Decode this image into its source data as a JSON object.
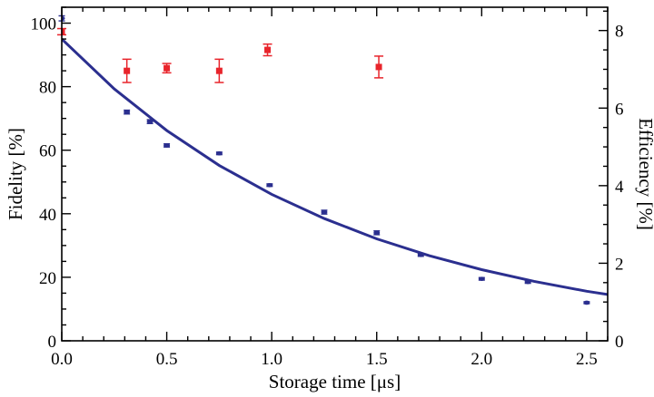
{
  "chart_data": {
    "type": "scatter",
    "title": "",
    "xlabel": "Storage time [μs]",
    "ylabel": "Fidelity [%]",
    "y2label": "Efficiency [%]",
    "xlim": [
      0,
      2.6
    ],
    "ylim": [
      0,
      105
    ],
    "y2lim": [
      0,
      8.6
    ],
    "xticks": [
      "0.0",
      "0.5",
      "1.0",
      "1.5",
      "2.0",
      "2.5"
    ],
    "yticks": [
      "0",
      "20",
      "40",
      "60",
      "80",
      "100"
    ],
    "y2ticks": [
      "0",
      "2",
      "4",
      "6",
      "8"
    ],
    "grid": false,
    "colors": {
      "efficiency": "#e8242b",
      "fidelity": "#2b2f8f",
      "fit": "#2b2f8f"
    },
    "series": [
      {
        "axis": "right",
        "marker": "square",
        "x": [
          0.0,
          0.31,
          0.5,
          0.75,
          0.98,
          1.51
        ],
        "y": [
          7.97,
          6.96,
          7.03,
          6.96,
          7.5,
          7.06
        ],
        "err": [
          0.08,
          0.3,
          0.12,
          0.3,
          0.15,
          0.28
        ]
      },
      {
        "axis": "left",
        "marker": "dot",
        "x": [
          0.0,
          0.31,
          0.42,
          0.5,
          0.75,
          0.99,
          1.25,
          1.5,
          1.71,
          2.0,
          2.22,
          2.5
        ],
        "y": [
          101.5,
          72,
          69,
          61.5,
          59,
          49,
          40.5,
          34,
          27,
          19.5,
          18.5,
          12
        ],
        "err": [
          0.8,
          0.6,
          0.6,
          0.5,
          0.4,
          0.4,
          0.6,
          0.6,
          0.4,
          0.4,
          0.4,
          0.3
        ]
      },
      {
        "axis": "left",
        "marker": "none",
        "style": "line",
        "x": [
          0.0,
          0.25,
          0.5,
          0.75,
          1.0,
          1.25,
          1.5,
          1.75,
          2.0,
          2.25,
          2.5,
          2.6
        ],
        "y": [
          95.0,
          79.3,
          66.2,
          55.2,
          46.1,
          38.5,
          32.1,
          26.8,
          22.4,
          18.7,
          15.6,
          14.6
        ]
      }
    ]
  }
}
